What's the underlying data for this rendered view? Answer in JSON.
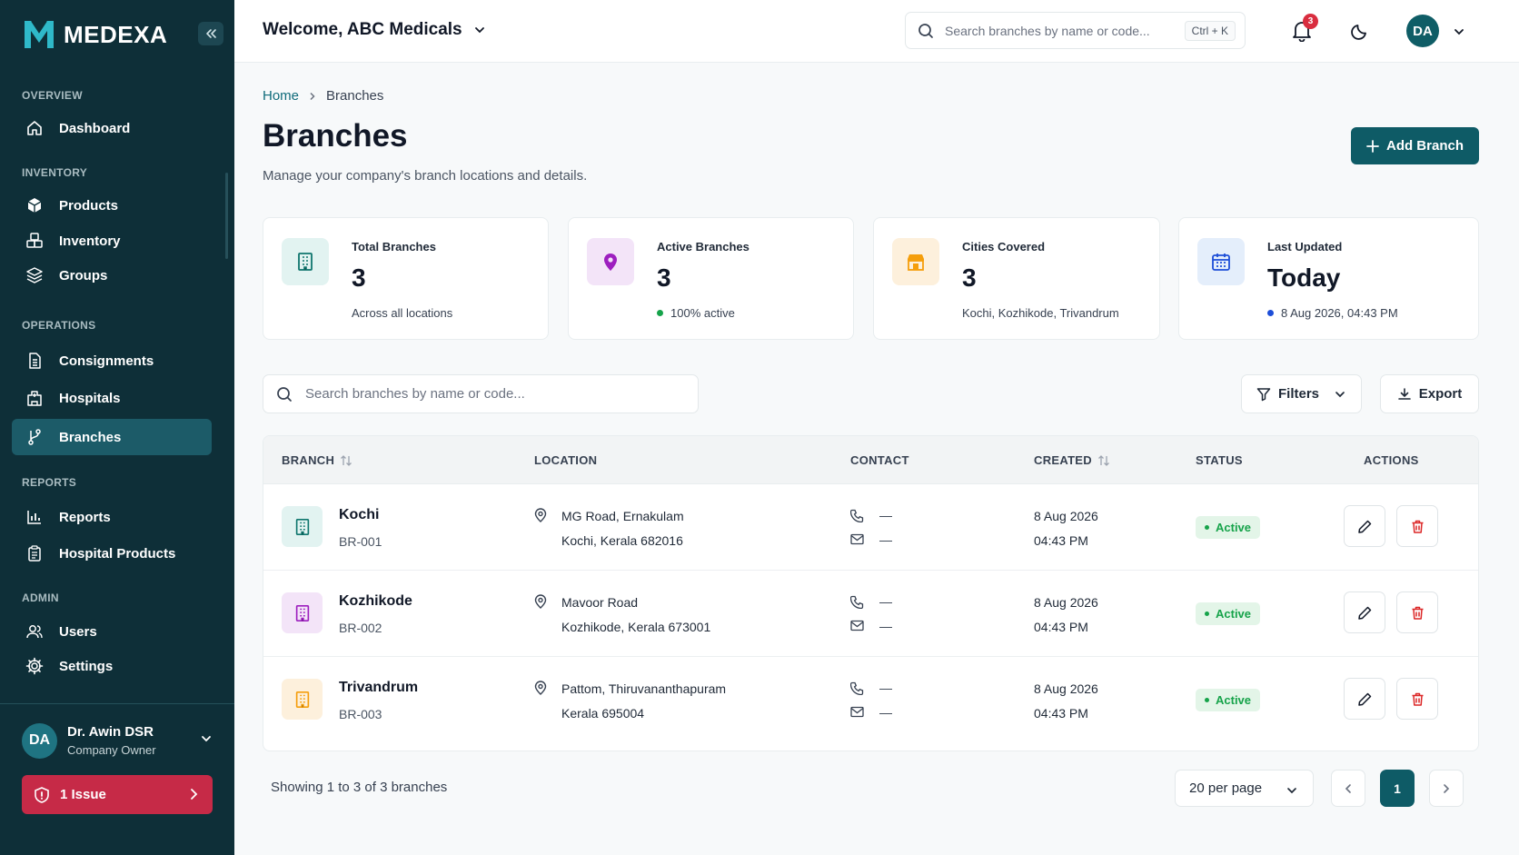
{
  "app": {
    "name": "MEDEXA"
  },
  "sidebar": {
    "sections": [
      {
        "title": "OVERVIEW"
      },
      {
        "title": "INVENTORY"
      },
      {
        "title": "OPERATIONS"
      },
      {
        "title": "REPORTS"
      },
      {
        "title": "ADMIN"
      }
    ],
    "items": [
      {
        "label": "Dashboard",
        "icon": "home-icon"
      },
      {
        "label": "Products",
        "icon": "box-icon"
      },
      {
        "label": "Inventory",
        "icon": "boxes-icon"
      },
      {
        "label": "Groups",
        "icon": "layers-icon"
      },
      {
        "label": "Consignments",
        "icon": "document-icon"
      },
      {
        "label": "Hospitals",
        "icon": "hospital-icon"
      },
      {
        "label": "Branches",
        "icon": "branch-icon",
        "active": true
      },
      {
        "label": "Reports",
        "icon": "bar-chart-icon"
      },
      {
        "label": "Hospital Products",
        "icon": "clipboard-icon"
      },
      {
        "label": "Users",
        "icon": "users-icon"
      },
      {
        "label": "Settings",
        "icon": "gear-icon"
      }
    ],
    "user": {
      "initials": "DA",
      "name": "Dr. Awin DSR",
      "role": "Company Owner"
    },
    "issue": {
      "label": "1 Issue"
    }
  },
  "topbar": {
    "welcome": "Welcome, ABC Medicals",
    "search_placeholder": "Search branches by name or code...",
    "shortcut": "Ctrl + K",
    "notification_count": "3",
    "avatar_initials": "DA"
  },
  "breadcrumb": {
    "home": "Home",
    "current": "Branches"
  },
  "page": {
    "title": "Branches",
    "subtitle": "Manage your company's branch locations and details.",
    "add_button": "Add Branch"
  },
  "stats": [
    {
      "label": "Total Branches",
      "value": "3",
      "sub": "Across all locations",
      "icon": "building-icon"
    },
    {
      "label": "Active Branches",
      "value": "3",
      "sub": "100% active",
      "icon": "map-pin-icon"
    },
    {
      "label": "Cities Covered",
      "value": "3",
      "sub": "Kochi, Kozhikode, Trivandrum",
      "icon": "store-icon"
    },
    {
      "label": "Last Updated",
      "value": "Today",
      "sub": "8 Aug 2026, 04:43 PM",
      "icon": "calendar-icon"
    }
  ],
  "toolbar": {
    "search_placeholder": "Search branches by name or code...",
    "filters": "Filters",
    "export": "Export"
  },
  "table": {
    "columns": [
      "BRANCH",
      "LOCATION",
      "CONTACT",
      "CREATED",
      "STATUS",
      "ACTIONS"
    ],
    "rows": [
      {
        "name": "Kochi",
        "code": "BR-001",
        "loc1": "MG Road, Ernakulam",
        "loc2": "Kochi, Kerala 682016",
        "phone": "—",
        "email": "—",
        "date": "8 Aug 2026",
        "time": "04:43 PM",
        "status": "Active"
      },
      {
        "name": "Kozhikode",
        "code": "BR-002",
        "loc1": "Mavoor Road",
        "loc2": "Kozhikode, Kerala 673001",
        "phone": "—",
        "email": "—",
        "date": "8 Aug 2026",
        "time": "04:43 PM",
        "status": "Active"
      },
      {
        "name": "Trivandrum",
        "code": "BR-003",
        "loc1": "Pattom, Thiruvananthapuram",
        "loc2": "Kerala 695004",
        "phone": "—",
        "email": "—",
        "date": "8 Aug 2026",
        "time": "04:43 PM",
        "status": "Active"
      }
    ]
  },
  "pagination": {
    "showing": "Showing 1 to 3 of 3 branches",
    "per_page": "20 per page",
    "current_page": "1"
  },
  "colors": {
    "sidebar_bg": "#0e2f38",
    "primary": "#0e5b66",
    "active_green": "#16a34a",
    "danger": "#d92d3f"
  }
}
